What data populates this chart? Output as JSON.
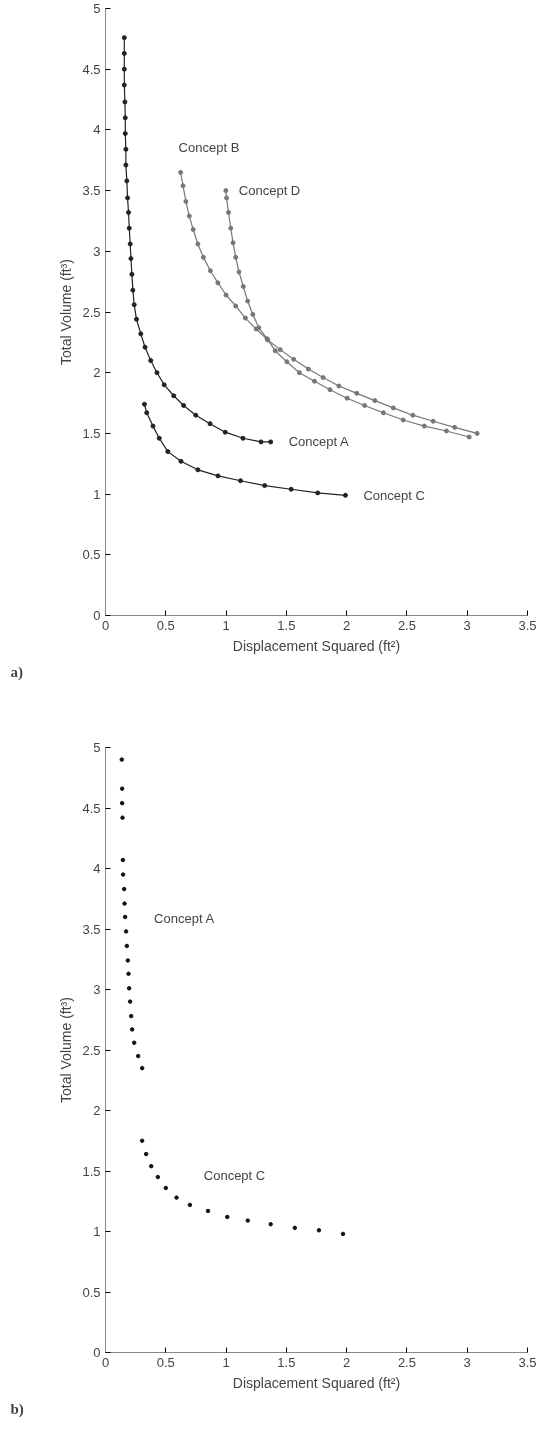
{
  "chart_data": [
    {
      "type": "line",
      "xlabel": "Displacement Squared (ft²)",
      "ylabel": "Total Volume (ft³)",
      "xlim": [
        0,
        3.5
      ],
      "ylim": [
        0,
        5
      ],
      "xticks": [
        0,
        0.5,
        1,
        1.5,
        2,
        2.5,
        3,
        3.5
      ],
      "yticks": [
        0,
        0.5,
        1,
        1.5,
        2,
        2.5,
        3,
        3.5,
        4,
        4.5,
        5
      ],
      "grid": false,
      "marker": "circle",
      "line_style": "solid",
      "series": [
        {
          "name": "Concept A",
          "color": "#222222",
          "x": [
            0.156,
            0.156,
            0.156,
            0.156,
            0.161,
            0.164,
            0.164,
            0.169,
            0.169,
            0.177,
            0.183,
            0.191,
            0.197,
            0.205,
            0.211,
            0.219,
            0.227,
            0.238,
            0.257,
            0.293,
            0.328,
            0.375,
            0.427,
            0.487,
            0.566,
            0.648,
            0.749,
            0.867,
            0.993,
            1.14,
            1.29,
            1.37
          ],
          "values": [
            4.76,
            4.63,
            4.5,
            4.37,
            4.23,
            4.1,
            3.97,
            3.84,
            3.71,
            3.58,
            3.44,
            3.32,
            3.19,
            3.06,
            2.94,
            2.81,
            2.68,
            2.56,
            2.44,
            2.32,
            2.21,
            2.1,
            2.0,
            1.9,
            1.81,
            1.73,
            1.65,
            1.58,
            1.51,
            1.46,
            1.43,
            1.43
          ]
        },
        {
          "name": "Concept B",
          "color": "#777777",
          "x": [
            0.623,
            0.643,
            0.667,
            0.695,
            0.727,
            0.766,
            0.812,
            0.87,
            0.932,
            1.0,
            1.08,
            1.16,
            1.25,
            1.345,
            1.449,
            1.561,
            1.682,
            1.805,
            1.936,
            2.084,
            2.234,
            2.387,
            2.549,
            2.718,
            2.896,
            3.082
          ],
          "values": [
            3.65,
            3.54,
            3.41,
            3.29,
            3.18,
            3.06,
            2.95,
            2.84,
            2.74,
            2.64,
            2.55,
            2.45,
            2.36,
            2.27,
            2.19,
            2.11,
            2.03,
            1.96,
            1.89,
            1.83,
            1.77,
            1.71,
            1.65,
            1.6,
            1.55,
            1.5
          ]
        },
        {
          "name": "Concept C",
          "color": "#222222",
          "x": [
            0.323,
            0.342,
            0.394,
            0.446,
            0.517,
            0.626,
            0.766,
            0.933,
            1.12,
            1.32,
            1.54,
            1.76,
            1.99
          ],
          "values": [
            1.74,
            1.67,
            1.56,
            1.46,
            1.35,
            1.27,
            1.2,
            1.15,
            1.11,
            1.07,
            1.04,
            1.01,
            0.99
          ]
        },
        {
          "name": "Concept D",
          "color": "#777777",
          "x": [
            0.998,
            1.004,
            1.02,
            1.039,
            1.058,
            1.08,
            1.107,
            1.143,
            1.179,
            1.222,
            1.272,
            1.34,
            1.408,
            1.504,
            1.608,
            1.733,
            1.862,
            2.004,
            2.149,
            2.305,
            2.469,
            2.644,
            2.828,
            3.016
          ],
          "values": [
            3.5,
            3.44,
            3.32,
            3.19,
            3.07,
            2.95,
            2.83,
            2.71,
            2.59,
            2.48,
            2.37,
            2.28,
            2.18,
            2.09,
            2.0,
            1.93,
            1.86,
            1.79,
            1.73,
            1.67,
            1.61,
            1.56,
            1.52,
            1.47
          ]
        }
      ],
      "annotations": [
        "a)"
      ]
    },
    {
      "type": "scatter",
      "xlabel": "Displacement Squared (ft²)",
      "ylabel": "Total Volume (ft³)",
      "xlim": [
        0,
        3.5
      ],
      "ylim": [
        0,
        5
      ],
      "xticks": [
        0,
        0.5,
        1,
        1.5,
        2,
        2.5,
        3,
        3.5
      ],
      "yticks": [
        0,
        0.5,
        1,
        1.5,
        2,
        2.5,
        3,
        3.5,
        4,
        4.5,
        5
      ],
      "grid": false,
      "marker": "circle",
      "series": [
        {
          "name": "Concept A",
          "color": "#111111",
          "x": [
            0.135,
            0.138,
            0.138,
            0.141,
            0.144,
            0.146,
            0.155,
            0.158,
            0.163,
            0.171,
            0.177,
            0.185,
            0.191,
            0.196,
            0.204,
            0.213,
            0.221,
            0.238,
            0.271,
            0.304
          ],
          "values": [
            4.9,
            4.66,
            4.54,
            4.42,
            4.07,
            3.95,
            3.83,
            3.71,
            3.6,
            3.48,
            3.36,
            3.24,
            3.13,
            3.01,
            2.9,
            2.78,
            2.67,
            2.56,
            2.45,
            2.35
          ]
        },
        {
          "name": "Concept C",
          "color": "#111111",
          "x": [
            0.304,
            0.337,
            0.379,
            0.434,
            0.5,
            0.589,
            0.7,
            0.85,
            1.01,
            1.18,
            1.37,
            1.57,
            1.77,
            1.97
          ],
          "values": [
            1.75,
            1.64,
            1.54,
            1.45,
            1.36,
            1.28,
            1.22,
            1.17,
            1.12,
            1.09,
            1.06,
            1.03,
            1.01,
            0.98
          ]
        }
      ],
      "annotations": [
        "b)"
      ]
    }
  ]
}
